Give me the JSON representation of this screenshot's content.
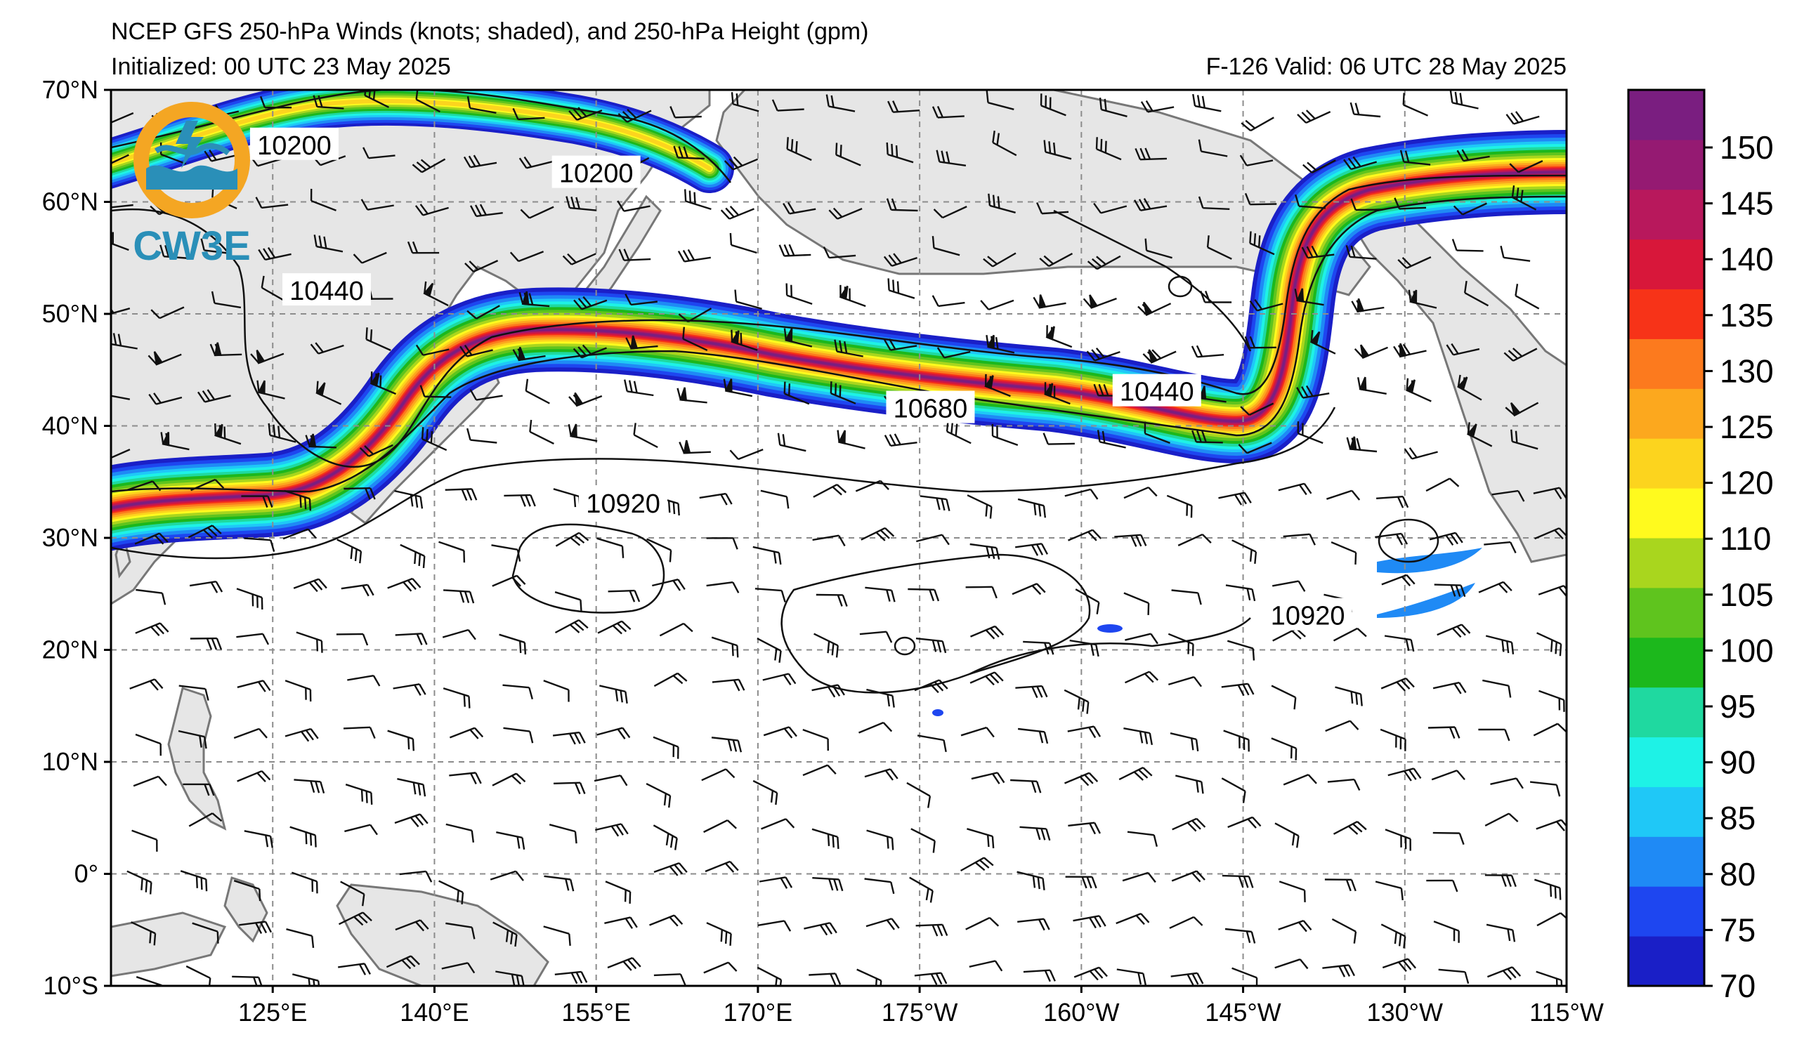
{
  "header": {
    "title": "NCEP GFS 250-hPa Winds (knots; shaded), and 250-hPa Height (gpm)",
    "initialized": "Initialized: 00 UTC 23 May 2025",
    "valid": "F-126  Valid: 06 UTC 28 May 2025"
  },
  "logo": {
    "text": "CW3E",
    "colors": {
      "ring": "#f4a623",
      "wave": "#2a8fb8"
    }
  },
  "axes": {
    "lon_labels": [
      "125°E",
      "140°E",
      "155°E",
      "170°E",
      "175°W",
      "160°W",
      "145°W",
      "130°W",
      "115°W"
    ],
    "lat_labels": [
      "70°N",
      "60°N",
      "50°N",
      "40°N",
      "30°N",
      "20°N",
      "10°N",
      "0°",
      "10°S"
    ]
  },
  "contour_labels": [
    {
      "text": "10200",
      "lon": 155,
      "lat": 62.5
    },
    {
      "text": "10200",
      "lon": 127,
      "lat": 65
    },
    {
      "text": "10440",
      "lon": 130,
      "lat": 52
    },
    {
      "text": "10440",
      "lon": 207,
      "lat": 43
    },
    {
      "text": "10680",
      "lon": 186,
      "lat": 41.5
    },
    {
      "text": "10920",
      "lon": 157.5,
      "lat": 33
    },
    {
      "text": "10920",
      "lon": 221,
      "lat": 23
    }
  ],
  "colorbar": {
    "labels": [
      "70",
      "75",
      "80",
      "85",
      "90",
      "95",
      "100",
      "105",
      "110",
      "120",
      "125",
      "130",
      "135",
      "140",
      "145",
      "150"
    ],
    "colors": [
      "#1a1fc7",
      "#1e46f0",
      "#1f8af5",
      "#1fc8f7",
      "#1ef2e6",
      "#1fd9a0",
      "#1cb81c",
      "#5fc41e",
      "#a9d61e",
      "#fffa1e",
      "#fcd41e",
      "#fca81e",
      "#fc7a1e",
      "#f73318",
      "#d8173a",
      "#b8185c",
      "#951a72",
      "#7a1e80"
    ]
  }
}
